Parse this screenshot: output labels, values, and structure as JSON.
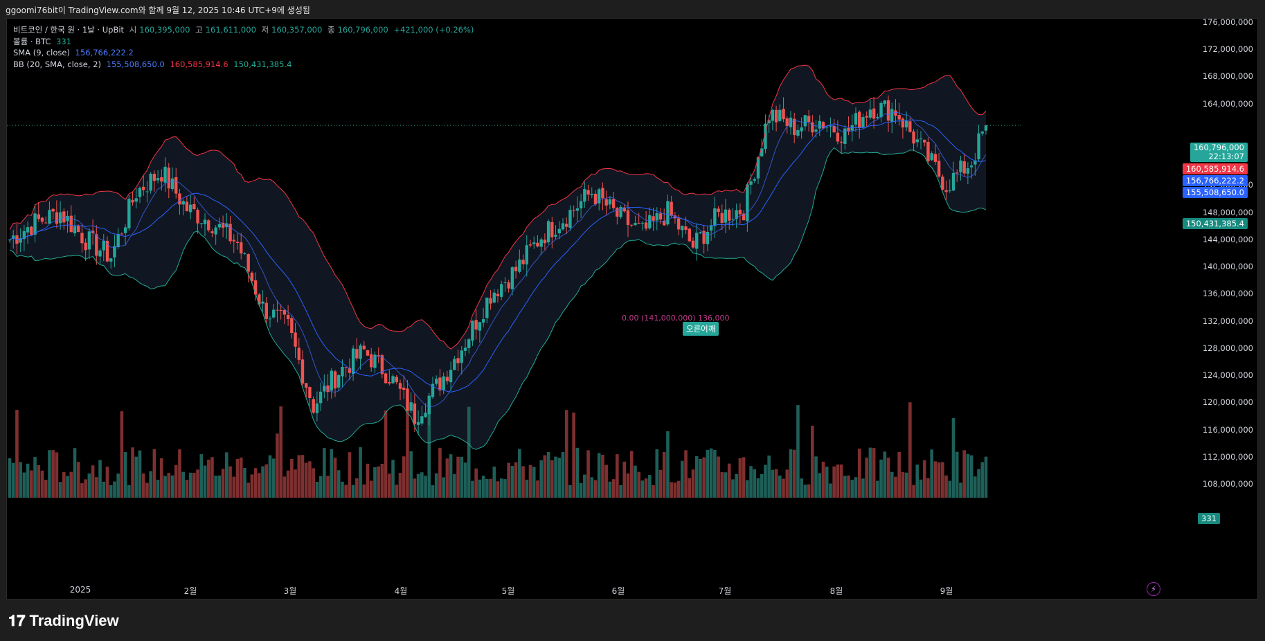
{
  "caption": "ggoomi76bit이 TradingView.com와 함께 9월 12, 2025 10:46 UTC+9에 생성됨",
  "legend": {
    "symbol": "비트코인 / 한국 원 · 1날 · UpBit",
    "open_label": "시",
    "open": "160,395,000",
    "high_label": "고",
    "high": "161,611,000",
    "low_label": "저",
    "low": "160,357,000",
    "close_label": "종",
    "close": "160,796,000",
    "change": "+421,000 (+0.26%)",
    "volume_label": "볼륨 · BTC",
    "volume": "331",
    "sma_label": "SMA (9, close)",
    "sma_value": "156,766,222.2",
    "bb_label": "BB (20, SMA, close, 2)",
    "bb_basis": "155,508,650.0",
    "bb_upper": "160,585,914.6",
    "bb_lower": "150,431,385.4"
  },
  "price_axis": [
    "176,000,000",
    "172,000,000",
    "168,000,000",
    "164,000,000",
    "152,000,000",
    "148,000,000",
    "144,000,000",
    "140,000,000",
    "136,000,000",
    "132,000,000",
    "128,000,000",
    "124,000,000",
    "120,000,000",
    "116,000,000",
    "112,000,000",
    "108,000,000"
  ],
  "price_tags": {
    "last_price": "160,796,000",
    "countdown": "22:13:07",
    "bb_upper": "160,585,914.6",
    "sma": "156,766,222.2",
    "bb_basis": "155,508,650.0",
    "bb_lower": "150,431,385.4",
    "volume": "331"
  },
  "time_axis": [
    "2025",
    "2월",
    "3월",
    "4월",
    "5월",
    "6월",
    "7월",
    "8월",
    "9월"
  ],
  "signal": {
    "label": "오른어깨",
    "overlay_text": "0.00 (141,000,000) 136,000"
  },
  "brand": "TradingView",
  "colors": {
    "up": "#26a69a",
    "down": "#ef5350",
    "sma": "#2962ff",
    "bb_upper": "#f23645",
    "bb_lower": "#22ab94"
  },
  "chart_data": {
    "type": "candlestick",
    "symbol": "비트코인 / 한국 원",
    "interval": "1날",
    "exchange": "UpBit",
    "y_range": [
      104000000,
      178000000
    ],
    "x_labels": [
      "2025",
      "2월",
      "3월",
      "4월",
      "5월",
      "6월",
      "7월",
      "8월",
      "9월"
    ],
    "last_ohlc": {
      "open": 160395000,
      "high": 161611000,
      "low": 160357000,
      "close": 160796000
    },
    "approx_close_path": [
      {
        "x": "2024-12-15",
        "y": 144000000
      },
      {
        "x": "2024-12-22",
        "y": 146500000
      },
      {
        "x": "2024-12-29",
        "y": 148000000
      },
      {
        "x": "2025-01-05",
        "y": 144000000
      },
      {
        "x": "2025-01-12",
        "y": 141500000
      },
      {
        "x": "2025-01-19",
        "y": 151000000
      },
      {
        "x": "2025-01-26",
        "y": 154000000
      },
      {
        "x": "2025-02-02",
        "y": 148500000
      },
      {
        "x": "2025-02-09",
        "y": 146500000
      },
      {
        "x": "2025-02-16",
        "y": 143500000
      },
      {
        "x": "2025-02-23",
        "y": 134000000
      },
      {
        "x": "2025-03-02",
        "y": 131000000
      },
      {
        "x": "2025-03-09",
        "y": 119500000
      },
      {
        "x": "2025-03-16",
        "y": 124500000
      },
      {
        "x": "2025-03-23",
        "y": 127500000
      },
      {
        "x": "2025-03-30",
        "y": 124000000
      },
      {
        "x": "2025-04-06",
        "y": 118000000
      },
      {
        "x": "2025-04-13",
        "y": 123000000
      },
      {
        "x": "2025-04-20",
        "y": 129000000
      },
      {
        "x": "2025-04-27",
        "y": 136000000
      },
      {
        "x": "2025-05-04",
        "y": 139500000
      },
      {
        "x": "2025-05-11",
        "y": 144500000
      },
      {
        "x": "2025-05-18",
        "y": 147500000
      },
      {
        "x": "2025-05-25",
        "y": 151000000
      },
      {
        "x": "2025-06-01",
        "y": 147500000
      },
      {
        "x": "2025-06-08",
        "y": 145000000
      },
      {
        "x": "2025-06-15",
        "y": 148000000
      },
      {
        "x": "2025-06-22",
        "y": 143000000
      },
      {
        "x": "2025-06-29",
        "y": 147500000
      },
      {
        "x": "2025-07-06",
        "y": 148500000
      },
      {
        "x": "2025-07-13",
        "y": 162500000
      },
      {
        "x": "2025-07-20",
        "y": 160500000
      },
      {
        "x": "2025-07-27",
        "y": 161500000
      },
      {
        "x": "2025-08-03",
        "y": 159500000
      },
      {
        "x": "2025-08-10",
        "y": 163500000
      },
      {
        "x": "2025-08-17",
        "y": 163000000
      },
      {
        "x": "2025-08-24",
        "y": 157500000
      },
      {
        "x": "2025-08-31",
        "y": 152000000
      },
      {
        "x": "2025-09-07",
        "y": 155500000
      },
      {
        "x": "2025-09-11",
        "y": 160796000
      }
    ]
  }
}
